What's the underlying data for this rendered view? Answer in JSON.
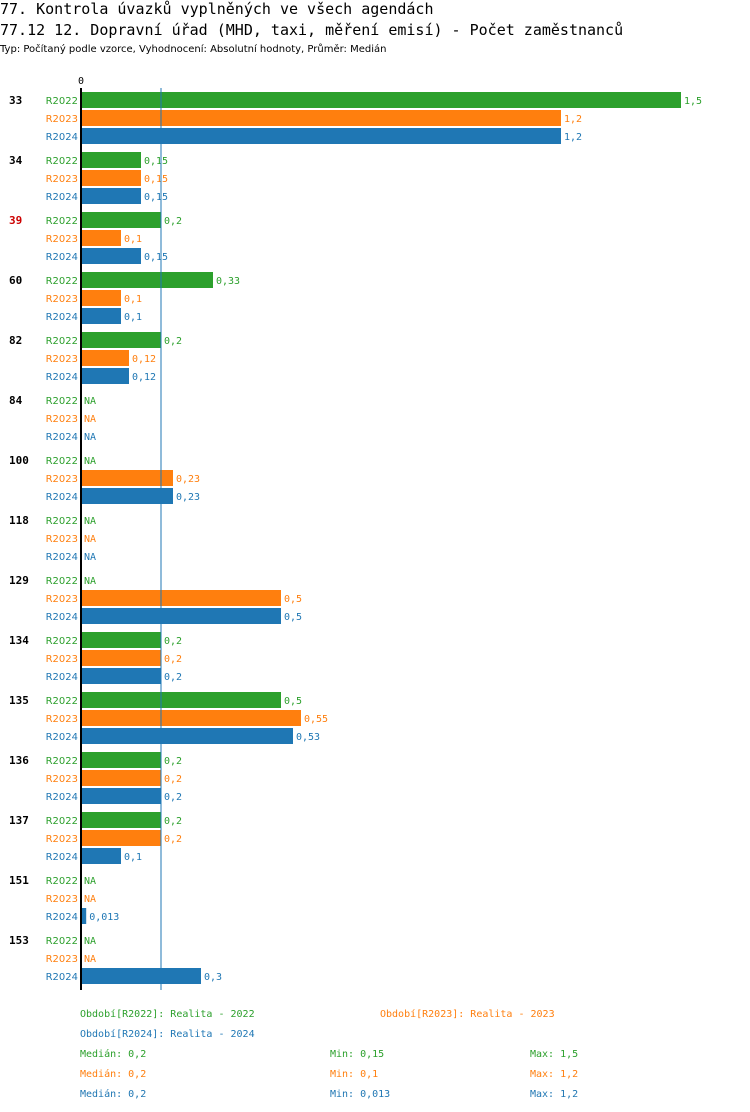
{
  "header": {
    "title_line1": "77. Kontrola úvazků vyplněných ve všech agendách",
    "title_line2": "77.12 12. Dopravní úřad (MHD, taxi, měření emisí) - Počet zaměstnanců",
    "subtitle": "Typ: Počítaný podle vzorce, Vyhodnocení: Absolutní hodnoty, Průměr: Medián"
  },
  "colors": {
    "R2022": "#2ca02c",
    "R2023": "#ff7f0e",
    "R2024": "#1f77b4",
    "highlight": "#cc0000",
    "axis": "#000000",
    "median_line": "#1f77b4"
  },
  "chart_data": {
    "type": "bar",
    "orientation": "horizontal",
    "xlim": [
      0,
      1.5
    ],
    "x_tick_labels": [
      "0"
    ],
    "series_names": [
      "R2022",
      "R2023",
      "R2024"
    ],
    "median_line_value": 0.2,
    "groups": [
      {
        "label": "33",
        "highlight": false,
        "values": [
          1.5,
          1.2,
          1.2
        ],
        "labels": [
          "1,5",
          "1,2",
          "1,2"
        ]
      },
      {
        "label": "34",
        "highlight": false,
        "values": [
          0.15,
          0.15,
          0.15
        ],
        "labels": [
          "0,15",
          "0,15",
          "0,15"
        ]
      },
      {
        "label": "39",
        "highlight": true,
        "values": [
          0.2,
          0.1,
          0.15
        ],
        "labels": [
          "0,2",
          "0,1",
          "0,15"
        ]
      },
      {
        "label": "60",
        "highlight": false,
        "values": [
          0.33,
          0.1,
          0.1
        ],
        "labels": [
          "0,33",
          "0,1",
          "0,1"
        ]
      },
      {
        "label": "82",
        "highlight": false,
        "values": [
          0.2,
          0.12,
          0.12
        ],
        "labels": [
          "0,2",
          "0,12",
          "0,12"
        ]
      },
      {
        "label": "84",
        "highlight": false,
        "values": [
          null,
          null,
          null
        ],
        "labels": [
          "NA",
          "NA",
          "NA"
        ]
      },
      {
        "label": "100",
        "highlight": false,
        "values": [
          null,
          0.23,
          0.23
        ],
        "labels": [
          "NA",
          "0,23",
          "0,23"
        ]
      },
      {
        "label": "118",
        "highlight": false,
        "values": [
          null,
          null,
          null
        ],
        "labels": [
          "NA",
          "NA",
          "NA"
        ]
      },
      {
        "label": "129",
        "highlight": false,
        "values": [
          null,
          0.5,
          0.5
        ],
        "labels": [
          "NA",
          "0,5",
          "0,5"
        ]
      },
      {
        "label": "134",
        "highlight": false,
        "values": [
          0.2,
          0.2,
          0.2
        ],
        "labels": [
          "0,2",
          "0,2",
          "0,2"
        ]
      },
      {
        "label": "135",
        "highlight": false,
        "values": [
          0.5,
          0.55,
          0.53
        ],
        "labels": [
          "0,5",
          "0,55",
          "0,53"
        ]
      },
      {
        "label": "136",
        "highlight": false,
        "values": [
          0.2,
          0.2,
          0.2
        ],
        "labels": [
          "0,2",
          "0,2",
          "0,2"
        ]
      },
      {
        "label": "137",
        "highlight": false,
        "values": [
          0.2,
          0.2,
          0.1
        ],
        "labels": [
          "0,2",
          "0,2",
          "0,1"
        ]
      },
      {
        "label": "151",
        "highlight": false,
        "values": [
          null,
          null,
          0.013
        ],
        "labels": [
          "NA",
          "NA",
          "0,013"
        ]
      },
      {
        "label": "153",
        "highlight": false,
        "values": [
          null,
          null,
          0.3
        ],
        "labels": [
          "NA",
          "NA",
          "0,3"
        ]
      }
    ],
    "legend": [
      {
        "series": "R2022",
        "text": "Období[R2022]: Realita - 2022"
      },
      {
        "series": "R2023",
        "text": "Období[R2023]: Realita - 2023"
      },
      {
        "series": "R2024",
        "text": "Období[R2024]: Realita - 2024"
      }
    ],
    "stats": [
      {
        "series": "R2022",
        "median": "Medián: 0,2",
        "min": "Min: 0,15",
        "max": "Max: 1,5"
      },
      {
        "series": "R2023",
        "median": "Medián: 0,2",
        "min": "Min: 0,1",
        "max": "Max: 1,2"
      },
      {
        "series": "R2024",
        "median": "Medián: 0,2",
        "min": "Min: 0,013",
        "max": "Max: 1,2"
      }
    ]
  }
}
